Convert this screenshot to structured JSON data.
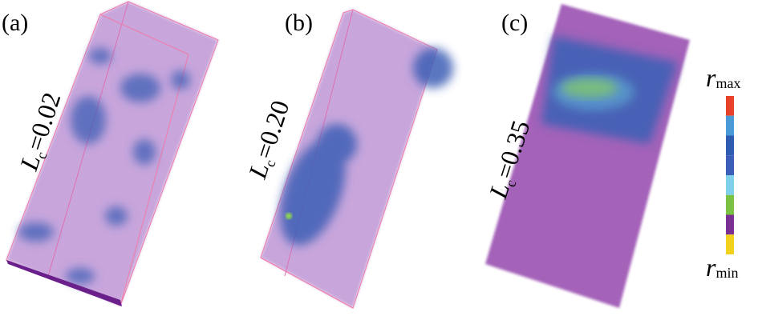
{
  "panels": [
    {
      "label": "(a)",
      "param_symbol": "L",
      "param_subscript": "c",
      "param_value": "=0.02"
    },
    {
      "label": "(b)",
      "param_symbol": "L",
      "param_subscript": "c",
      "param_value": "=0.20"
    },
    {
      "label": "(c)",
      "param_symbol": "L",
      "param_subscript": "c",
      "param_value": "=0.35"
    }
  ],
  "colorbar": {
    "top_symbol": "r",
    "top_subscript": "max",
    "bottom_symbol": "r",
    "bottom_subscript": "min",
    "colors": [
      "#e8432a",
      "#4a9ad8",
      "#2e5cb0",
      "#3b5fb8",
      "#7fd0ea",
      "#7cc242",
      "#7a2f93",
      "#f2d11c"
    ]
  }
}
